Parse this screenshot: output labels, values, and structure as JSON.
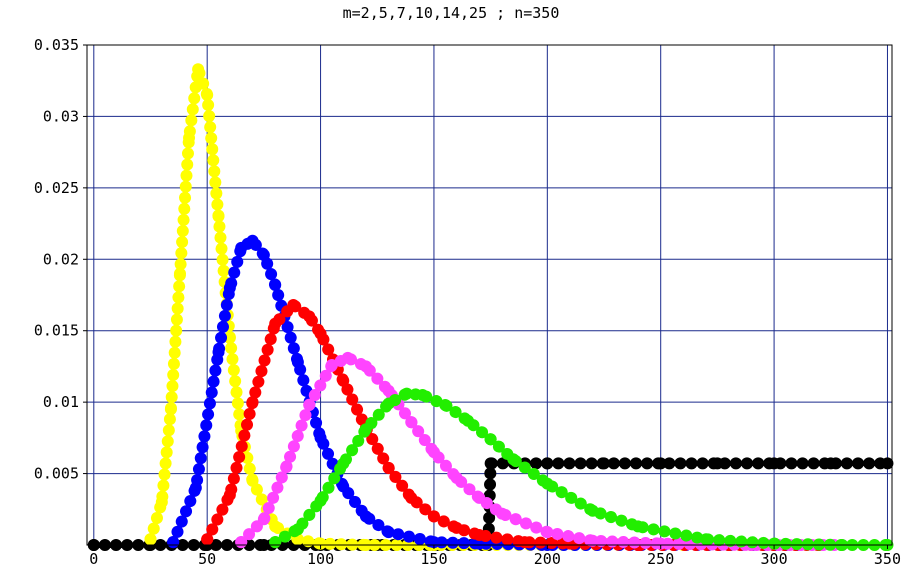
{
  "chart_data": {
    "type": "scatter",
    "title": "m=2,5,7,10,14,25 ; n=350",
    "xlabel": "",
    "ylabel": "",
    "xlim": [
      -3,
      352
    ],
    "ylim": [
      0,
      0.035
    ],
    "x_ticks": [
      0,
      50,
      100,
      150,
      200,
      250,
      300,
      350
    ],
    "x_tick_labels": [
      "0",
      "50",
      "100",
      "150",
      "200",
      "250",
      "300",
      "350"
    ],
    "y_ticks": [
      0.005,
      0.01,
      0.015,
      0.02,
      0.025,
      0.03,
      0.035
    ],
    "y_tick_labels": [
      "0.005",
      "0.01",
      "0.015",
      "0.02",
      "0.025",
      "0.03",
      "0.035"
    ],
    "grid": true,
    "legend": "none",
    "series": [
      {
        "color": "#000000",
        "x": [
          0,
          25,
          50,
          75,
          100,
          125,
          150,
          174,
          175,
          200,
          225,
          250,
          275,
          300,
          325,
          350
        ],
        "y": [
          0,
          0,
          0,
          0,
          0,
          0,
          0,
          0,
          0.00571,
          0.00571,
          0.00571,
          0.00571,
          0.00571,
          0.00571,
          0.00571,
          0.00571
        ]
      },
      {
        "color": "#ffff00",
        "x": [
          25,
          30,
          34,
          38,
          42,
          46,
          50,
          55,
          60,
          65,
          70,
          80,
          90,
          100,
          120,
          150,
          200,
          260
        ],
        "y": [
          0.0004,
          0.003,
          0.0095,
          0.019,
          0.0285,
          0.0333,
          0.0315,
          0.023,
          0.0145,
          0.008,
          0.0045,
          0.0013,
          0.0004,
          0.0001,
          0,
          0,
          0,
          0
        ]
      },
      {
        "color": "#0000ff",
        "x": [
          35,
          45,
          55,
          60,
          65,
          70,
          75,
          80,
          90,
          100,
          110,
          120,
          130,
          150,
          170,
          200,
          240,
          280,
          310
        ],
        "y": [
          0.0002,
          0.004,
          0.0135,
          0.018,
          0.0208,
          0.0213,
          0.0203,
          0.0182,
          0.0128,
          0.0075,
          0.0041,
          0.002,
          0.0009,
          0.0002,
          0.0001,
          0,
          0,
          0,
          0
        ]
      },
      {
        "color": "#ff0000",
        "x": [
          50,
          60,
          70,
          80,
          88,
          95,
          100,
          110,
          120,
          130,
          140,
          150,
          160,
          170,
          190,
          210,
          240,
          280,
          320
        ],
        "y": [
          0.0004,
          0.0035,
          0.01,
          0.0155,
          0.0168,
          0.016,
          0.0148,
          0.0115,
          0.0082,
          0.0054,
          0.0033,
          0.002,
          0.0012,
          0.0007,
          0.0002,
          0.0001,
          0,
          0,
          0
        ]
      },
      {
        "color": "#ff44ff",
        "x": [
          65,
          75,
          85,
          95,
          105,
          112,
          120,
          130,
          140,
          150,
          160,
          170,
          180,
          200,
          220,
          250,
          290,
          330
        ],
        "y": [
          0.0002,
          0.0018,
          0.0055,
          0.0098,
          0.0126,
          0.0131,
          0.0125,
          0.0108,
          0.0086,
          0.0065,
          0.0047,
          0.0033,
          0.0022,
          0.0009,
          0.0003,
          0.0001,
          0,
          0
        ]
      },
      {
        "color": "#22ee00",
        "x": [
          80,
          90,
          100,
          110,
          120,
          130,
          138,
          145,
          155,
          165,
          175,
          185,
          200,
          220,
          240,
          270,
          300,
          330,
          350
        ],
        "y": [
          0.0002,
          0.0011,
          0.0031,
          0.0057,
          0.0081,
          0.0099,
          0.0106,
          0.0105,
          0.0098,
          0.0087,
          0.0074,
          0.006,
          0.0043,
          0.0024,
          0.0013,
          0.0004,
          0.0001,
          0,
          0
        ]
      }
    ]
  }
}
